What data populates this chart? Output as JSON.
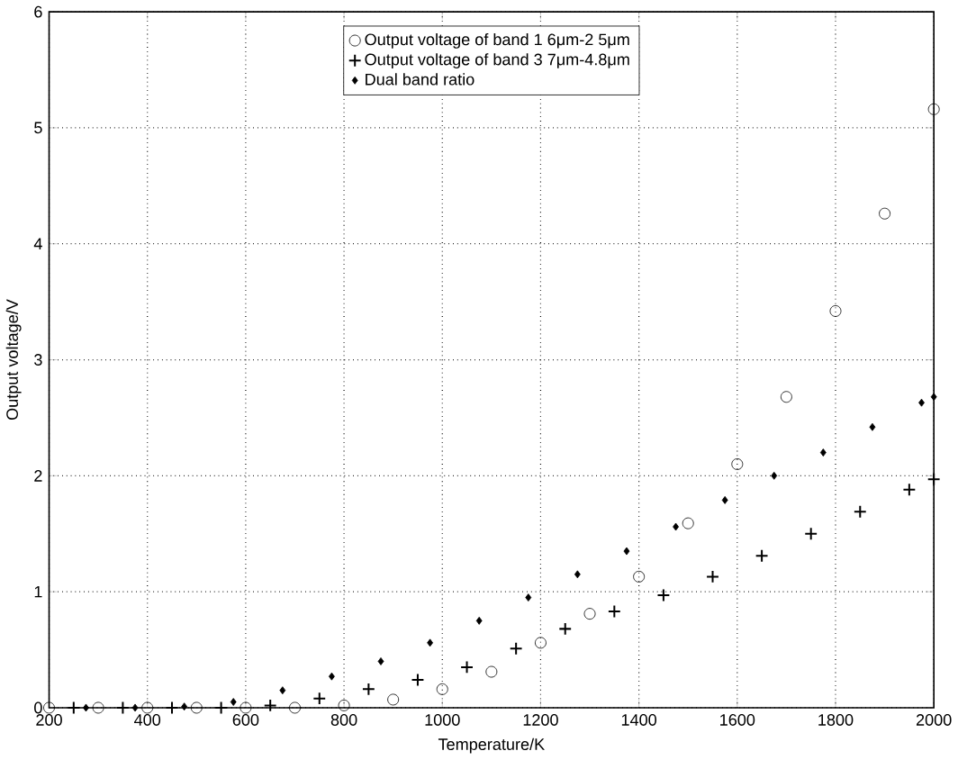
{
  "chart_data": {
    "type": "scatter",
    "xlabel": "Temperature/K",
    "ylabel": "Output voltage/V",
    "x": [
      200,
      300,
      400,
      500,
      600,
      700,
      800,
      900,
      1000,
      1100,
      1200,
      1300,
      1400,
      1500,
      1600,
      1700,
      1800,
      1900,
      2000
    ],
    "series": [
      {
        "name": "Output voltage of band 1 6μm-2 5μm",
        "color": "#000000",
        "marker": "circle",
        "values": [
          0,
          0,
          0,
          0,
          0,
          0,
          0.02,
          0.07,
          0.16,
          0.31,
          0.56,
          0.81,
          1.13,
          1.59,
          2.1,
          2.68,
          3.42,
          4.26,
          5.16
        ]
      },
      {
        "name": "Output voltage of band 3 7μm-4.8μm",
        "color": "#000000",
        "marker": "cross",
        "x": [
          250,
          350,
          450,
          550,
          650,
          750,
          850,
          950,
          1050,
          1150,
          1250,
          1350,
          1450,
          1550,
          1650,
          1750,
          1850,
          1950,
          2000
        ],
        "values": [
          0,
          0,
          0,
          0,
          0.02,
          0.08,
          0.16,
          0.24,
          0.35,
          0.51,
          0.68,
          0.83,
          0.97,
          1.13,
          1.31,
          1.5,
          1.69,
          1.88,
          1.97
        ]
      },
      {
        "name": "Dual band ratio",
        "color": "#000000",
        "marker": "diamond",
        "x": [
          275,
          375,
          475,
          575,
          675,
          775,
          875,
          975,
          1075,
          1175,
          1275,
          1375,
          1475,
          1575,
          1675,
          1775,
          1875,
          1975,
          2000
        ],
        "values": [
          0,
          0,
          0.01,
          0.05,
          0.15,
          0.27,
          0.4,
          0.56,
          0.75,
          0.95,
          1.15,
          1.35,
          1.56,
          1.79,
          2.0,
          2.2,
          2.42,
          2.63,
          2.68
        ]
      }
    ],
    "xlim": [
      200,
      2000
    ],
    "ylim": [
      0,
      6
    ],
    "xticks": [
      200,
      400,
      600,
      800,
      1000,
      1200,
      1400,
      1600,
      1800,
      2000
    ],
    "yticks": [
      0,
      1,
      2,
      3,
      4,
      5,
      6
    ],
    "grid": true,
    "legend": "top"
  }
}
